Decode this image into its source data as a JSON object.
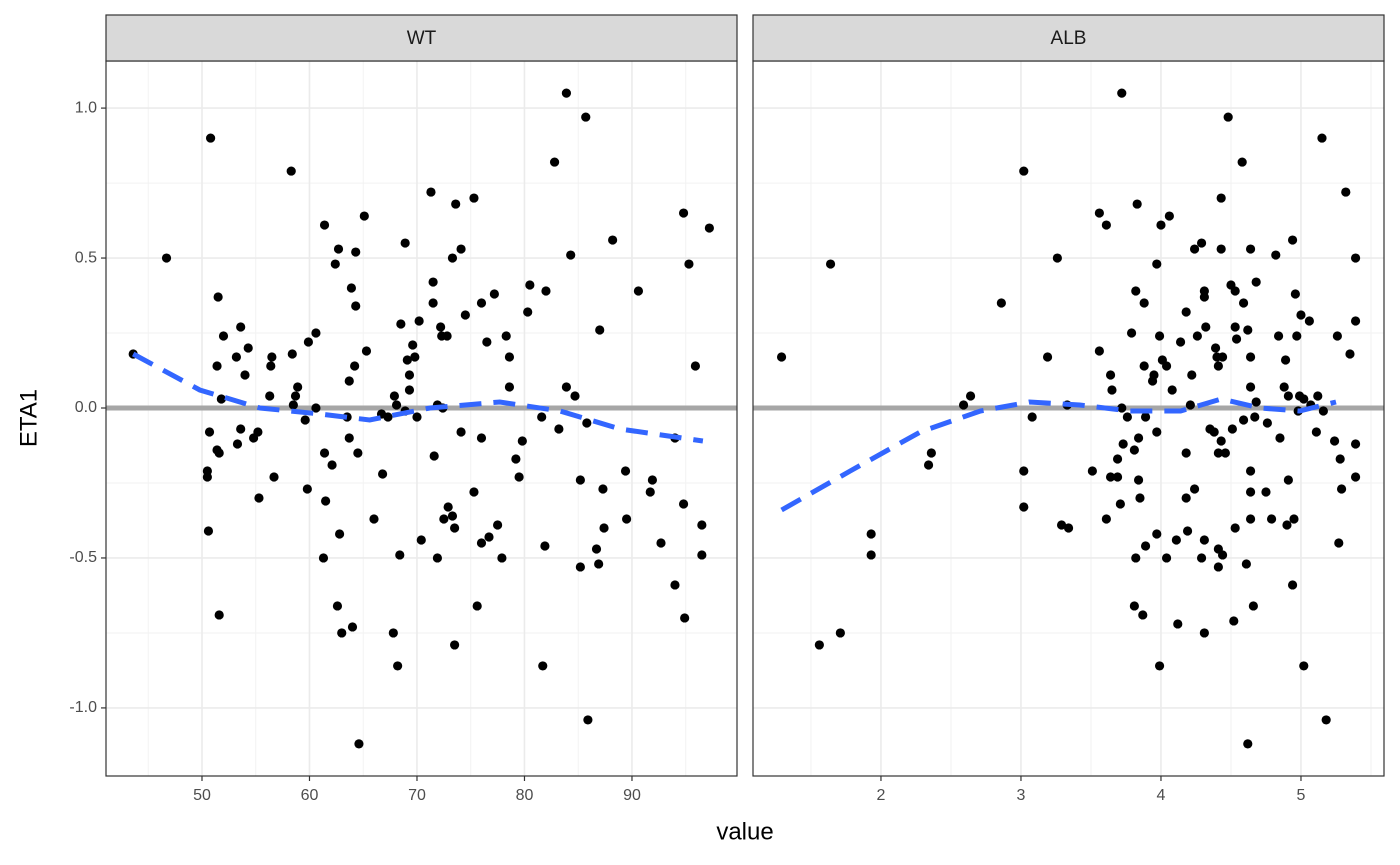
{
  "chart_data": {
    "type": "scatter",
    "xlabel": "value",
    "ylabel": "ETA1",
    "ylim": [
      -1.227,
      1.157
    ],
    "yticks": [
      {
        "value": -1,
        "label": "-1.0"
      },
      {
        "value": -0.5,
        "label": "-0.5"
      },
      {
        "value": 0,
        "label": "0.0"
      },
      {
        "value": 0.5,
        "label": "0.5"
      },
      {
        "value": 1,
        "label": "1.0"
      }
    ],
    "grid": true,
    "hline": 0,
    "hline_color": "#a6a6a6",
    "facets": [
      {
        "title": "WT",
        "xlim": [
          41.07,
          99.77
        ],
        "xticks": [
          50,
          60,
          70,
          80,
          90
        ],
        "points": {
          "color": "#000000",
          "x": [
            43.6,
            46.7,
            50.8,
            50.5,
            50.5,
            50.6,
            50.7,
            51.5,
            51.4,
            51.4,
            51.6,
            51.6,
            51.8,
            52.0,
            53.2,
            53.6,
            53.3,
            53.6,
            54.0,
            54.3,
            54.8,
            55.2,
            55.3,
            56.3,
            56.4,
            56.5,
            56.7,
            58.3,
            58.4,
            58.7,
            58.9,
            58.5,
            59.6,
            59.8,
            59.9,
            60.6,
            60.6,
            61.4,
            61.3,
            61.4,
            61.5,
            62.1,
            62.4,
            62.7,
            62.6,
            62.8,
            63.0,
            63.5,
            63.7,
            63.7,
            63.9,
            64.0,
            64.2,
            64.3,
            64.3,
            64.5,
            64.6,
            65.1,
            65.3,
            66.0,
            66.7,
            66.8,
            67.3,
            67.9,
            67.8,
            68.1,
            68.2,
            68.4,
            68.5,
            68.9,
            68.9,
            69.1,
            69.3,
            69.3,
            69.6,
            69.8,
            70.0,
            70.2,
            70.4,
            71.3,
            71.5,
            71.5,
            71.6,
            71.9,
            71.9,
            72.2,
            72.3,
            72.4,
            72.5,
            72.8,
            72.9,
            73.3,
            73.3,
            73.5,
            73.5,
            73.6,
            74.1,
            74.1,
            74.5,
            75.3,
            75.3,
            75.6,
            76.0,
            76.0,
            76.0,
            76.5,
            76.7,
            77.2,
            77.5,
            77.9,
            78.3,
            78.6,
            78.6,
            79.2,
            79.5,
            79.8,
            80.3,
            80.5,
            81.6,
            81.7,
            81.9,
            82.0,
            82.8,
            83.2,
            83.9,
            83.9,
            84.3,
            84.7,
            85.2,
            85.2,
            85.7,
            85.8,
            85.9,
            86.7,
            86.9,
            87.0,
            87.3,
            87.4,
            88.2,
            89.4,
            89.5,
            90.6,
            91.9,
            91.7,
            92.7,
            94.0,
            94.0,
            94.8,
            94.8,
            94.9,
            95.3,
            95.9,
            96.5,
            96.5,
            97.2
          ],
          "y": [
            0.18,
            0.5,
            0.9,
            -0.21,
            -0.23,
            -0.41,
            -0.08,
            0.37,
            0.14,
            -0.14,
            -0.15,
            -0.69,
            0.03,
            0.24,
            0.17,
            0.27,
            -0.12,
            -0.07,
            0.11,
            0.2,
            -0.1,
            -0.08,
            -0.3,
            0.04,
            0.14,
            0.17,
            -0.23,
            0.79,
            0.18,
            0.04,
            0.07,
            0.01,
            -0.04,
            -0.27,
            0.22,
            0.25,
            0.0,
            0.61,
            -0.5,
            -0.15,
            -0.31,
            -0.19,
            0.48,
            0.53,
            -0.66,
            -0.42,
            -0.75,
            -0.03,
            0.09,
            -0.1,
            0.4,
            -0.73,
            0.14,
            0.34,
            0.52,
            -0.15,
            -1.12,
            0.64,
            0.19,
            -0.37,
            -0.02,
            -0.22,
            -0.03,
            0.04,
            -0.75,
            0.01,
            -0.86,
            -0.49,
            0.28,
            0.55,
            -0.01,
            0.16,
            0.11,
            0.06,
            0.21,
            0.17,
            -0.03,
            0.29,
            -0.44,
            0.72,
            0.42,
            0.35,
            -0.16,
            -0.5,
            0.01,
            0.27,
            0.24,
            0.0,
            -0.37,
            0.24,
            -0.33,
            0.5,
            -0.36,
            -0.4,
            -0.79,
            0.68,
            0.53,
            -0.08,
            0.31,
            0.7,
            -0.28,
            -0.66,
            0.35,
            -0.1,
            -0.45,
            0.22,
            -0.43,
            0.38,
            -0.39,
            -0.5,
            0.24,
            0.17,
            0.07,
            -0.17,
            -0.23,
            -0.11,
            0.32,
            0.41,
            -0.03,
            -0.86,
            -0.46,
            0.39,
            0.82,
            -0.07,
            1.05,
            0.07,
            0.51,
            0.04,
            -0.24,
            -0.53,
            0.97,
            -0.05,
            -1.04,
            -0.47,
            -0.52,
            0.26,
            -0.27,
            -0.4,
            0.56,
            -0.21,
            -0.37,
            0.39,
            -0.24,
            -0.28,
            -0.45,
            -0.1,
            -0.59,
            0.65,
            -0.32,
            -0.7,
            0.48,
            0.14,
            -0.39,
            -0.49,
            0.6
          ]
        },
        "smooth": {
          "color": "#3366ff",
          "x": [
            43.6,
            49.8,
            55.4,
            61.0,
            65.6,
            71.2,
            77.7,
            83.3,
            88.9,
            96.6
          ],
          "y": [
            0.18,
            0.06,
            0.0,
            -0.02,
            -0.04,
            0.0,
            0.02,
            -0.01,
            -0.07,
            -0.11
          ]
        }
      },
      {
        "title": "ALB",
        "xlim": [
          1.086,
          5.593
        ],
        "xticks": [
          2,
          3,
          4,
          5
        ],
        "points": {
          "color": "#000000",
          "x": [
            1.29,
            1.64,
            1.56,
            1.71,
            1.93,
            1.93,
            2.34,
            2.36,
            2.59,
            2.64,
            2.86,
            3.02,
            3.02,
            3.02,
            3.08,
            3.19,
            3.26,
            3.29,
            3.34,
            3.33,
            3.51,
            3.56,
            3.56,
            3.61,
            3.61,
            3.64,
            3.65,
            3.64,
            3.69,
            3.69,
            3.71,
            3.72,
            3.72,
            3.73,
            3.76,
            3.79,
            3.81,
            3.81,
            3.82,
            3.82,
            3.83,
            3.84,
            3.84,
            3.85,
            3.87,
            3.88,
            3.88,
            3.89,
            3.89,
            3.94,
            3.95,
            3.97,
            3.97,
            3.97,
            3.99,
            3.99,
            4.0,
            4.01,
            4.04,
            4.04,
            4.06,
            4.08,
            4.11,
            4.12,
            4.14,
            4.18,
            4.18,
            4.18,
            4.19,
            4.21,
            4.22,
            4.24,
            4.24,
            4.26,
            4.29,
            4.29,
            4.31,
            4.31,
            4.31,
            4.31,
            4.32,
            4.35,
            4.38,
            4.39,
            4.4,
            4.41,
            4.41,
            4.41,
            4.41,
            4.43,
            4.43,
            4.43,
            4.44,
            4.44,
            4.46,
            4.48,
            4.5,
            4.51,
            4.53,
            4.53,
            4.53,
            4.52,
            4.54,
            4.58,
            4.59,
            4.59,
            4.61,
            4.62,
            4.62,
            4.64,
            4.64,
            4.64,
            4.64,
            4.64,
            4.64,
            4.66,
            4.67,
            4.68,
            4.68,
            4.75,
            4.76,
            4.79,
            4.82,
            4.84,
            4.85,
            4.88,
            4.89,
            4.9,
            4.91,
            4.91,
            4.94,
            4.94,
            4.95,
            4.96,
            4.97,
            4.98,
            4.99,
            5.0,
            5.02,
            5.02,
            5.06,
            5.07,
            5.11,
            5.12,
            5.15,
            5.16,
            5.18,
            5.24,
            5.26,
            5.27,
            5.28,
            5.29,
            5.32,
            5.35,
            5.39,
            5.39,
            5.39,
            5.39
          ],
          "y": [
            0.17,
            0.48,
            -0.79,
            -0.75,
            -0.42,
            -0.49,
            -0.19,
            -0.15,
            0.01,
            0.04,
            0.35,
            0.79,
            -0.21,
            -0.33,
            -0.03,
            0.17,
            0.5,
            -0.39,
            -0.4,
            0.01,
            -0.21,
            0.19,
            0.65,
            0.61,
            -0.37,
            0.11,
            0.06,
            -0.23,
            -0.23,
            -0.17,
            -0.32,
            1.05,
            0.0,
            -0.12,
            -0.03,
            0.25,
            -0.14,
            -0.66,
            0.39,
            -0.5,
            0.68,
            -0.1,
            -0.24,
            -0.3,
            -0.69,
            0.35,
            0.14,
            -0.46,
            -0.03,
            0.09,
            0.11,
            -0.42,
            0.48,
            -0.08,
            -0.86,
            0.24,
            0.61,
            0.16,
            -0.5,
            0.14,
            0.64,
            0.06,
            -0.44,
            -0.72,
            0.22,
            -0.15,
            0.32,
            -0.3,
            -0.41,
            0.01,
            0.11,
            0.53,
            -0.27,
            0.24,
            -0.5,
            0.55,
            0.39,
            0.37,
            -0.44,
            -0.75,
            0.27,
            -0.07,
            -0.08,
            0.2,
            0.17,
            0.14,
            -0.47,
            -0.53,
            -0.15,
            0.7,
            0.53,
            -0.11,
            0.17,
            -0.49,
            -0.15,
            0.97,
            0.41,
            -0.07,
            0.27,
            0.39,
            -0.4,
            -0.71,
            0.23,
            0.82,
            -0.04,
            0.35,
            -0.52,
            0.26,
            -1.12,
            -0.21,
            -0.28,
            -0.37,
            0.53,
            0.17,
            0.07,
            -0.66,
            -0.03,
            0.42,
            0.02,
            -0.28,
            -0.05,
            -0.37,
            0.51,
            0.24,
            -0.1,
            0.07,
            0.16,
            -0.39,
            0.04,
            -0.24,
            0.56,
            -0.59,
            -0.37,
            0.38,
            0.24,
            -0.01,
            0.04,
            0.31,
            -0.86,
            0.03,
            0.29,
            0.01,
            -0.08,
            0.04,
            0.9,
            -0.01,
            -1.04,
            -0.11,
            0.24,
            -0.45,
            -0.17,
            -0.27,
            0.72,
            0.18,
            0.5,
            0.29,
            -0.12,
            -0.23
          ]
        },
        "smooth": {
          "color": "#3366ff",
          "x": [
            1.29,
            1.78,
            2.28,
            2.71,
            3.06,
            3.42,
            3.78,
            4.14,
            4.43,
            4.71,
            4.99,
            5.25
          ],
          "y": [
            -0.34,
            -0.21,
            -0.08,
            -0.01,
            0.02,
            0.01,
            -0.01,
            -0.01,
            0.03,
            0.0,
            -0.01,
            0.02
          ]
        }
      }
    ]
  }
}
